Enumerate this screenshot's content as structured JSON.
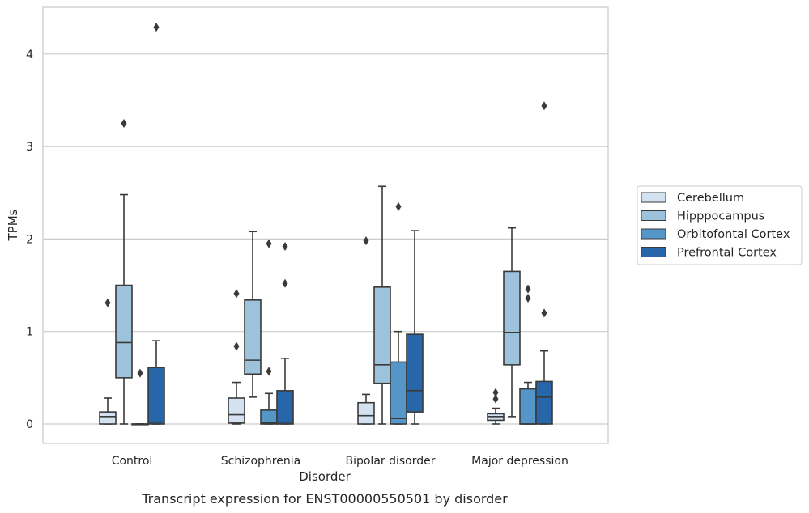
{
  "chart_data": {
    "type": "boxplot",
    "caption": "Transcript expression for ENST00000550501 by disorder",
    "xlabel": "Disorder",
    "ylabel": "TPMs",
    "ylim": [
      -0.21,
      4.5
    ],
    "yticks": [
      0,
      1,
      2,
      3,
      4
    ],
    "grid": "horizontal",
    "legend_position": "right",
    "categories": [
      "Control",
      "Schizophrenia",
      "Bipolar disorder",
      "Major depression"
    ],
    "series": [
      {
        "name": "Cerebellum",
        "color": "#d3e1f0",
        "boxes": [
          {
            "whislo": 0,
            "q1": 0,
            "med": 0.08,
            "q3": 0.13,
            "whishi": 0.28,
            "fliers": [
              1.31
            ]
          },
          {
            "whislo": 0,
            "q1": 0.01,
            "med": 0.1,
            "q3": 0.28,
            "whishi": 0.45,
            "fliers": [
              0.84,
              1.41
            ]
          },
          {
            "whislo": 0,
            "q1": 0,
            "med": 0.09,
            "q3": 0.23,
            "whishi": 0.32,
            "fliers": [
              1.98
            ]
          },
          {
            "whislo": 0,
            "q1": 0.04,
            "med": 0.08,
            "q3": 0.11,
            "whishi": 0.17,
            "fliers": [
              0.27,
              0.34
            ]
          }
        ]
      },
      {
        "name": "Hipppocampus",
        "color": "#9dc3dc",
        "boxes": [
          {
            "whislo": 0,
            "q1": 0.5,
            "med": 0.88,
            "q3": 1.5,
            "whishi": 2.48,
            "fliers": [
              3.25
            ]
          },
          {
            "whislo": 0.29,
            "q1": 0.54,
            "med": 0.69,
            "q3": 1.34,
            "whishi": 2.08,
            "fliers": []
          },
          {
            "whislo": 0,
            "q1": 0.44,
            "med": 0.64,
            "q3": 1.48,
            "whishi": 2.57,
            "fliers": []
          },
          {
            "whislo": 0.08,
            "q1": 0.64,
            "med": 0.99,
            "q3": 1.65,
            "whishi": 2.12,
            "fliers": []
          }
        ]
      },
      {
        "name": "Orbitofontal Cortex",
        "color": "#5596c8",
        "boxes": [
          {
            "whislo": 0,
            "q1": 0,
            "med": 0,
            "q3": 0,
            "whishi": 0,
            "fliers": [
              0.55
            ]
          },
          {
            "whislo": 0,
            "q1": 0,
            "med": 0.01,
            "q3": 0.15,
            "whishi": 0.33,
            "fliers": [
              0.57,
              1.95
            ]
          },
          {
            "whislo": 0,
            "q1": 0,
            "med": 0.06,
            "q3": 0.67,
            "whishi": 1.0,
            "fliers": [
              2.35
            ]
          },
          {
            "whislo": 0,
            "q1": 0,
            "med": 0,
            "q3": 0.38,
            "whishi": 0.45,
            "fliers": [
              1.36,
              1.46
            ]
          }
        ]
      },
      {
        "name": "Prefrontal Cortex",
        "color": "#2767a9",
        "boxes": [
          {
            "whislo": 0,
            "q1": 0,
            "med": 0.02,
            "q3": 0.61,
            "whishi": 0.9,
            "fliers": [
              4.29
            ]
          },
          {
            "whislo": 0,
            "q1": 0,
            "med": 0.02,
            "q3": 0.36,
            "whishi": 0.71,
            "fliers": [
              1.52,
              1.92
            ]
          },
          {
            "whislo": 0,
            "q1": 0.13,
            "med": 0.36,
            "q3": 0.97,
            "whishi": 2.09,
            "fliers": []
          },
          {
            "whislo": 0,
            "q1": 0,
            "med": 0.29,
            "q3": 0.46,
            "whishi": 0.79,
            "fliers": [
              1.2,
              3.44
            ]
          }
        ]
      }
    ]
  }
}
